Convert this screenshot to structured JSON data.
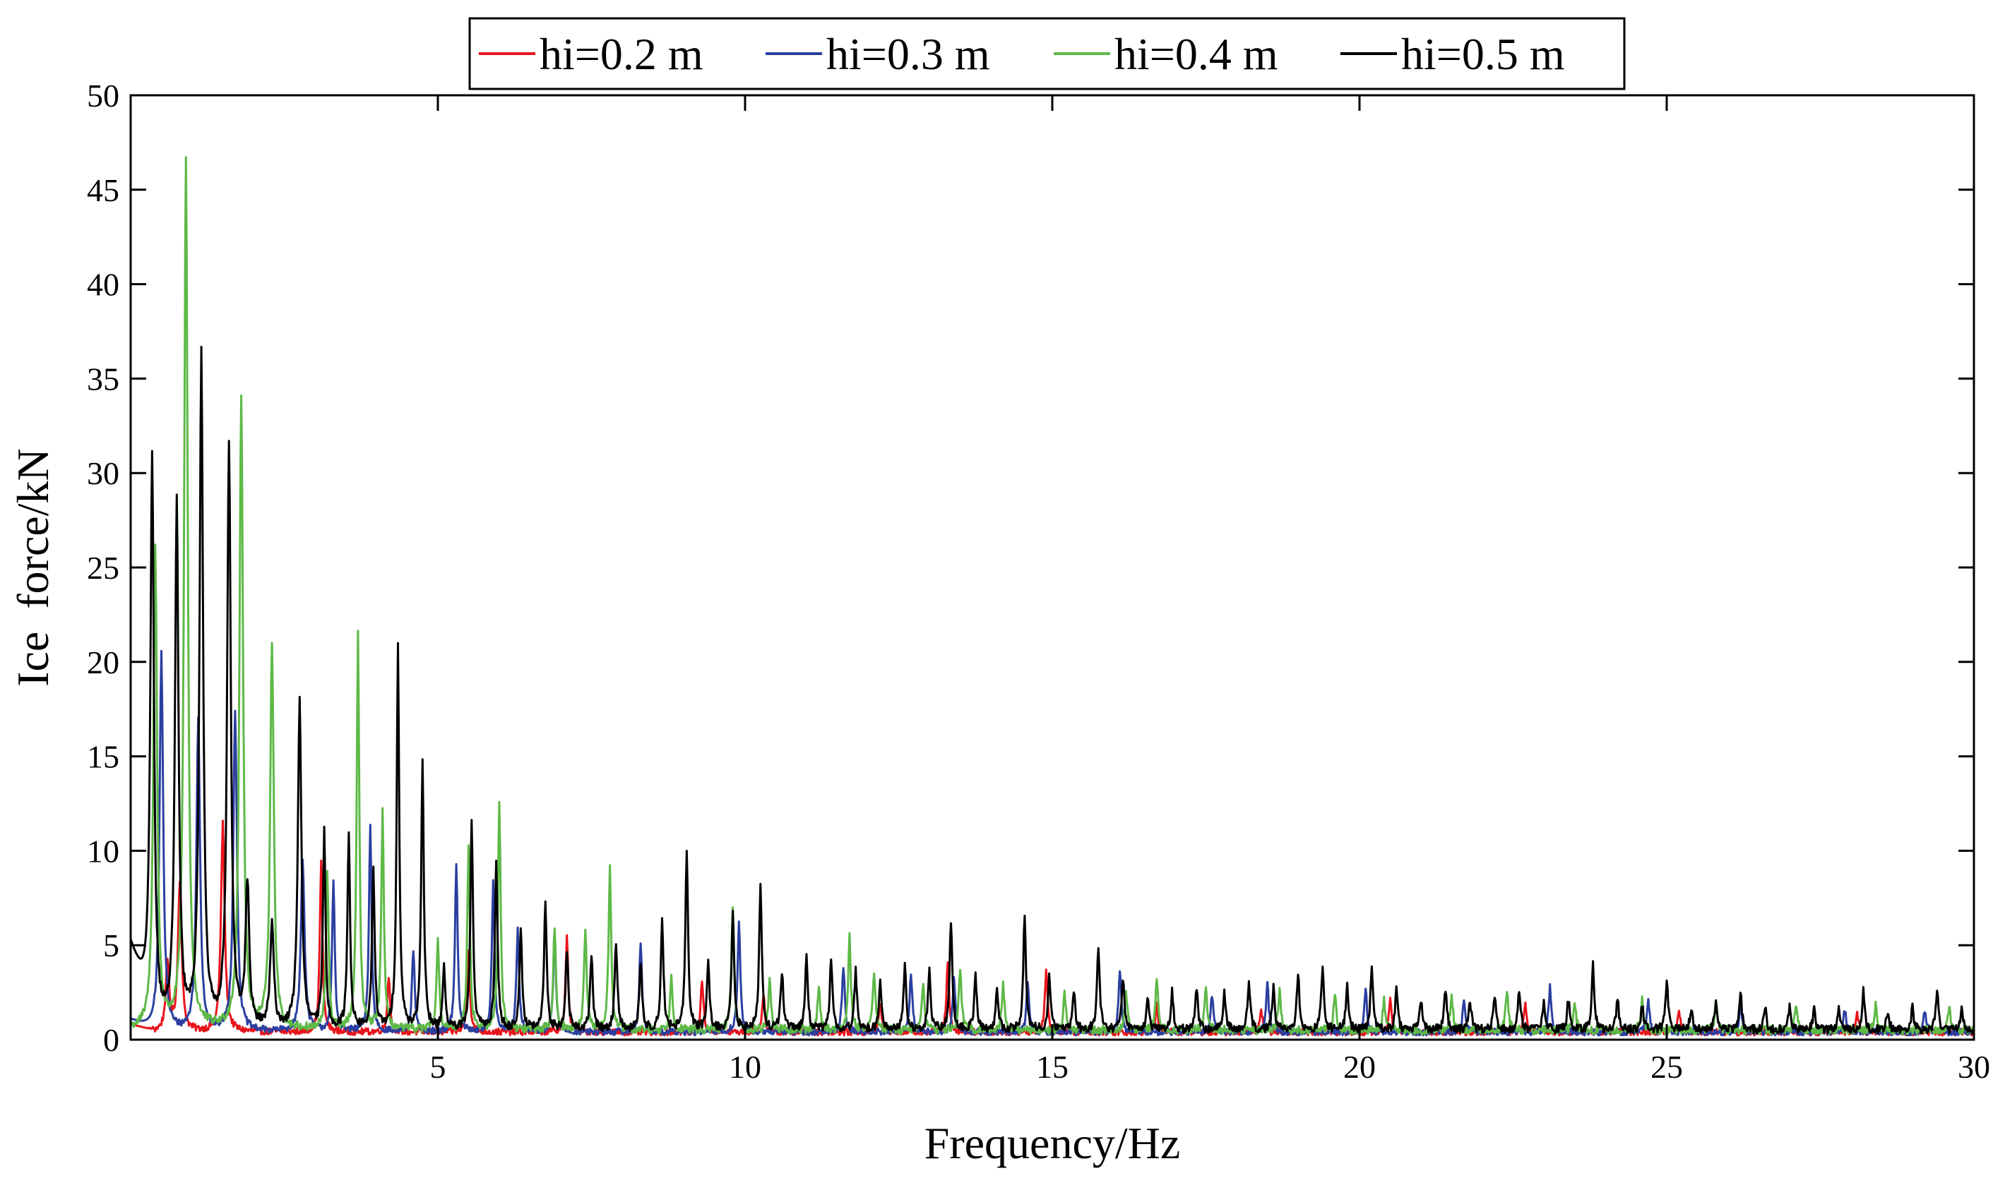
{
  "chart_data": {
    "type": "line",
    "title": "",
    "xlabel": "Frequency/Hz",
    "ylabel": "Ice  force/kN",
    "xlim": [
      0,
      30
    ],
    "ylim": [
      0,
      50
    ],
    "xticks": [
      5,
      10,
      15,
      20,
      25,
      30
    ],
    "yticks": [
      0,
      5,
      10,
      15,
      20,
      25,
      30,
      35,
      40,
      45,
      50
    ],
    "xtick_labels": [
      "5",
      "10",
      "15",
      "20",
      "25",
      "30"
    ],
    "ytick_labels": [
      "0",
      "5",
      "10",
      "15",
      "20",
      "25",
      "30",
      "35",
      "40",
      "45",
      "50"
    ],
    "grid": false,
    "legend_position": "top-center-outside",
    "series": [
      {
        "name": "hi=0.2 m",
        "color": "#e8141c",
        "baseline": 0.4,
        "start_value": 0.8,
        "peaks": [
          [
            0.6,
            3.5
          ],
          [
            0.8,
            8
          ],
          [
            1.5,
            11
          ],
          [
            3.1,
            9
          ],
          [
            4.2,
            3
          ],
          [
            5.5,
            4.5
          ],
          [
            7.1,
            5
          ],
          [
            9.3,
            2.8
          ],
          [
            10.3,
            2
          ],
          [
            12.2,
            1.5
          ],
          [
            13.3,
            3.8
          ],
          [
            14.9,
            3.3
          ],
          [
            16.7,
            1.4
          ],
          [
            18.4,
            1.2
          ],
          [
            20.5,
            1.7
          ],
          [
            22.7,
            1.5
          ],
          [
            25.2,
            1.1
          ],
          [
            28.1,
            1.0
          ]
        ]
      },
      {
        "name": "hi=0.3 m",
        "color": "#2b3fa0",
        "baseline": 0.4,
        "start_value": 1.0,
        "peaks": [
          [
            0.5,
            20
          ],
          [
            1.1,
            16.5
          ],
          [
            1.7,
            17
          ],
          [
            2.8,
            9.2
          ],
          [
            3.3,
            8
          ],
          [
            3.9,
            11
          ],
          [
            4.6,
            4.4
          ],
          [
            5.3,
            9
          ],
          [
            5.9,
            8
          ],
          [
            6.3,
            5.4
          ],
          [
            6.9,
            5.2
          ],
          [
            8.3,
            4.7
          ],
          [
            9.9,
            6
          ],
          [
            11.6,
            3.5
          ],
          [
            12.7,
            3.1
          ],
          [
            13.4,
            2.8
          ],
          [
            14.6,
            2.5
          ],
          [
            16.1,
            3.3
          ],
          [
            17.6,
            2
          ],
          [
            18.5,
            2.6
          ],
          [
            20.1,
            2.2
          ],
          [
            21.7,
            1.7
          ],
          [
            23.1,
            2.4
          ],
          [
            24.7,
            1.7
          ],
          [
            26.2,
            1.3
          ],
          [
            27.9,
            1.2
          ],
          [
            29.2,
            1.1
          ]
        ]
      },
      {
        "name": "hi=0.4 m",
        "color": "#5eb947",
        "baseline": 0.5,
        "start_value": 0.2,
        "peaks": [
          [
            0.4,
            25.5
          ],
          [
            0.9,
            46
          ],
          [
            1.8,
            33.5
          ],
          [
            2.3,
            20.5
          ],
          [
            3.2,
            8.2
          ],
          [
            3.7,
            21
          ],
          [
            4.1,
            11.5
          ],
          [
            5.0,
            4.6
          ],
          [
            5.5,
            9.8
          ],
          [
            6.0,
            12.2
          ],
          [
            6.9,
            5.5
          ],
          [
            7.4,
            5.2
          ],
          [
            7.8,
            8.6
          ],
          [
            8.8,
            2.9
          ],
          [
            9.8,
            6.7
          ],
          [
            10.4,
            2.6
          ],
          [
            11.2,
            2.3
          ],
          [
            11.7,
            4.9
          ],
          [
            12.1,
            3.2
          ],
          [
            12.9,
            2.5
          ],
          [
            13.5,
            3.3
          ],
          [
            14.2,
            2.4
          ],
          [
            15.2,
            1.9
          ],
          [
            16.2,
            2.1
          ],
          [
            16.7,
            2.6
          ],
          [
            17.5,
            2.3
          ],
          [
            18.7,
            2.2
          ],
          [
            19.6,
            1.9
          ],
          [
            20.4,
            1.6
          ],
          [
            21.5,
            1.8
          ],
          [
            22.4,
            2.1
          ],
          [
            23.5,
            1.5
          ],
          [
            24.6,
            1.6
          ],
          [
            25.8,
            1.4
          ],
          [
            27.1,
            1.3
          ],
          [
            28.4,
            1.3
          ],
          [
            29.6,
            1.2
          ]
        ]
      },
      {
        "name": "hi=0.5 m",
        "color": "#000000",
        "baseline": 0.5,
        "start_value": 4.9,
        "peaks": [
          [
            0.35,
            29.8
          ],
          [
            0.75,
            27.6
          ],
          [
            1.15,
            35.5
          ],
          [
            1.6,
            31
          ],
          [
            1.9,
            7.6
          ],
          [
            2.3,
            5.4
          ],
          [
            2.75,
            17.4
          ],
          [
            3.15,
            10.5
          ],
          [
            3.55,
            10.5
          ],
          [
            3.95,
            8.6
          ],
          [
            4.35,
            20.3
          ],
          [
            4.75,
            14.2
          ],
          [
            5.1,
            3.3
          ],
          [
            5.55,
            11.2
          ],
          [
            5.95,
            9
          ],
          [
            6.35,
            5.4
          ],
          [
            6.75,
            6.8
          ],
          [
            7.1,
            4.2
          ],
          [
            7.5,
            4
          ],
          [
            7.9,
            4.7
          ],
          [
            8.3,
            3.6
          ],
          [
            8.65,
            5.9
          ],
          [
            9.05,
            9.5
          ],
          [
            9.4,
            3.6
          ],
          [
            9.8,
            6.1
          ],
          [
            10.25,
            7.9
          ],
          [
            10.6,
            3.1
          ],
          [
            11.0,
            4
          ],
          [
            11.4,
            3.7
          ],
          [
            11.8,
            3.1
          ],
          [
            12.2,
            2.6
          ],
          [
            12.6,
            3.4
          ],
          [
            13.0,
            3.1
          ],
          [
            13.35,
            5.8
          ],
          [
            13.75,
            2.9
          ],
          [
            14.1,
            2.2
          ],
          [
            14.55,
            6.2
          ],
          [
            14.95,
            2.9
          ],
          [
            15.35,
            2.1
          ],
          [
            15.75,
            4.5
          ],
          [
            16.15,
            2.7
          ],
          [
            16.55,
            1.8
          ],
          [
            16.95,
            2
          ],
          [
            17.35,
            2.2
          ],
          [
            17.8,
            2.1
          ],
          [
            18.2,
            2.5
          ],
          [
            18.6,
            2.2
          ],
          [
            19.0,
            3
          ],
          [
            19.4,
            3.5
          ],
          [
            19.8,
            2.3
          ],
          [
            20.2,
            3.2
          ],
          [
            20.6,
            2.1
          ],
          [
            21.0,
            1.6
          ],
          [
            21.4,
            2.2
          ],
          [
            21.8,
            1.5
          ],
          [
            22.2,
            1.8
          ],
          [
            22.6,
            2.2
          ],
          [
            23.0,
            1.5
          ],
          [
            23.4,
            1.6
          ],
          [
            23.8,
            3.5
          ],
          [
            24.2,
            1.6
          ],
          [
            24.6,
            1.3
          ],
          [
            25.0,
            2.6
          ],
          [
            25.4,
            1.2
          ],
          [
            25.8,
            1.4
          ],
          [
            26.2,
            2
          ],
          [
            26.6,
            1.2
          ],
          [
            27.0,
            1.3
          ],
          [
            27.4,
            1.1
          ],
          [
            27.8,
            1.2
          ],
          [
            28.2,
            2.1
          ],
          [
            28.6,
            1
          ],
          [
            29.0,
            1.2
          ],
          [
            29.4,
            2.1
          ],
          [
            29.8,
            1.1
          ]
        ]
      }
    ]
  }
}
